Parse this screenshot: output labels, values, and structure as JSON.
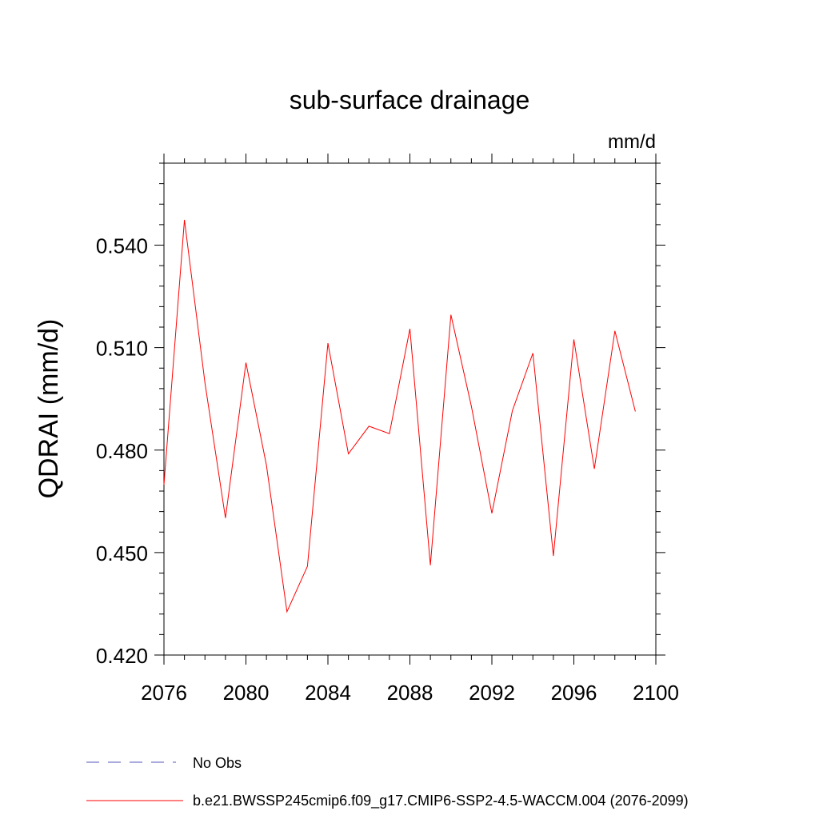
{
  "chart_data": {
    "type": "line",
    "title": "sub-surface drainage",
    "units": "mm/d",
    "xlabel": "",
    "ylabel": "QDRAI  (mm/d)",
    "xlim": [
      2076,
      2100
    ],
    "ylim": [
      0.42,
      0.564
    ],
    "xticks": [
      2076,
      2080,
      2084,
      2088,
      2092,
      2096,
      2100
    ],
    "xtick_labels": [
      "2076",
      "2080",
      "2084",
      "2088",
      "2092",
      "2096",
      "2100"
    ],
    "yticks": [
      0.42,
      0.45,
      0.48,
      0.51,
      0.54
    ],
    "ytick_labels": [
      "0.420",
      "0.450",
      "0.480",
      "0.510",
      "0.540"
    ],
    "grid": false,
    "legend_position": "bottom",
    "series": [
      {
        "name": "b.e21.BWSSP245cmip6.f09_g17.CMIP6-SSP2-4.5-WACCM.004 (2076-2099)",
        "color": "#ff0000",
        "style": "solid",
        "x": [
          2076,
          2077,
          2078,
          2079,
          2080,
          2081,
          2082,
          2083,
          2084,
          2085,
          2086,
          2087,
          2088,
          2089,
          2090,
          2091,
          2092,
          2093,
          2094,
          2095,
          2096,
          2097,
          2098,
          2099
        ],
        "y": [
          0.4699,
          0.5474,
          0.4996,
          0.4601,
          0.5056,
          0.4756,
          0.4327,
          0.446,
          0.5113,
          0.4789,
          0.487,
          0.4848,
          0.5155,
          0.4463,
          0.5196,
          0.4928,
          0.4615,
          0.4915,
          0.5084,
          0.449,
          0.5124,
          0.4745,
          0.5149,
          0.4913
        ]
      },
      {
        "name": "No Obs",
        "color": "#5555bb",
        "style": "dashed",
        "x": [],
        "y": []
      }
    ]
  }
}
